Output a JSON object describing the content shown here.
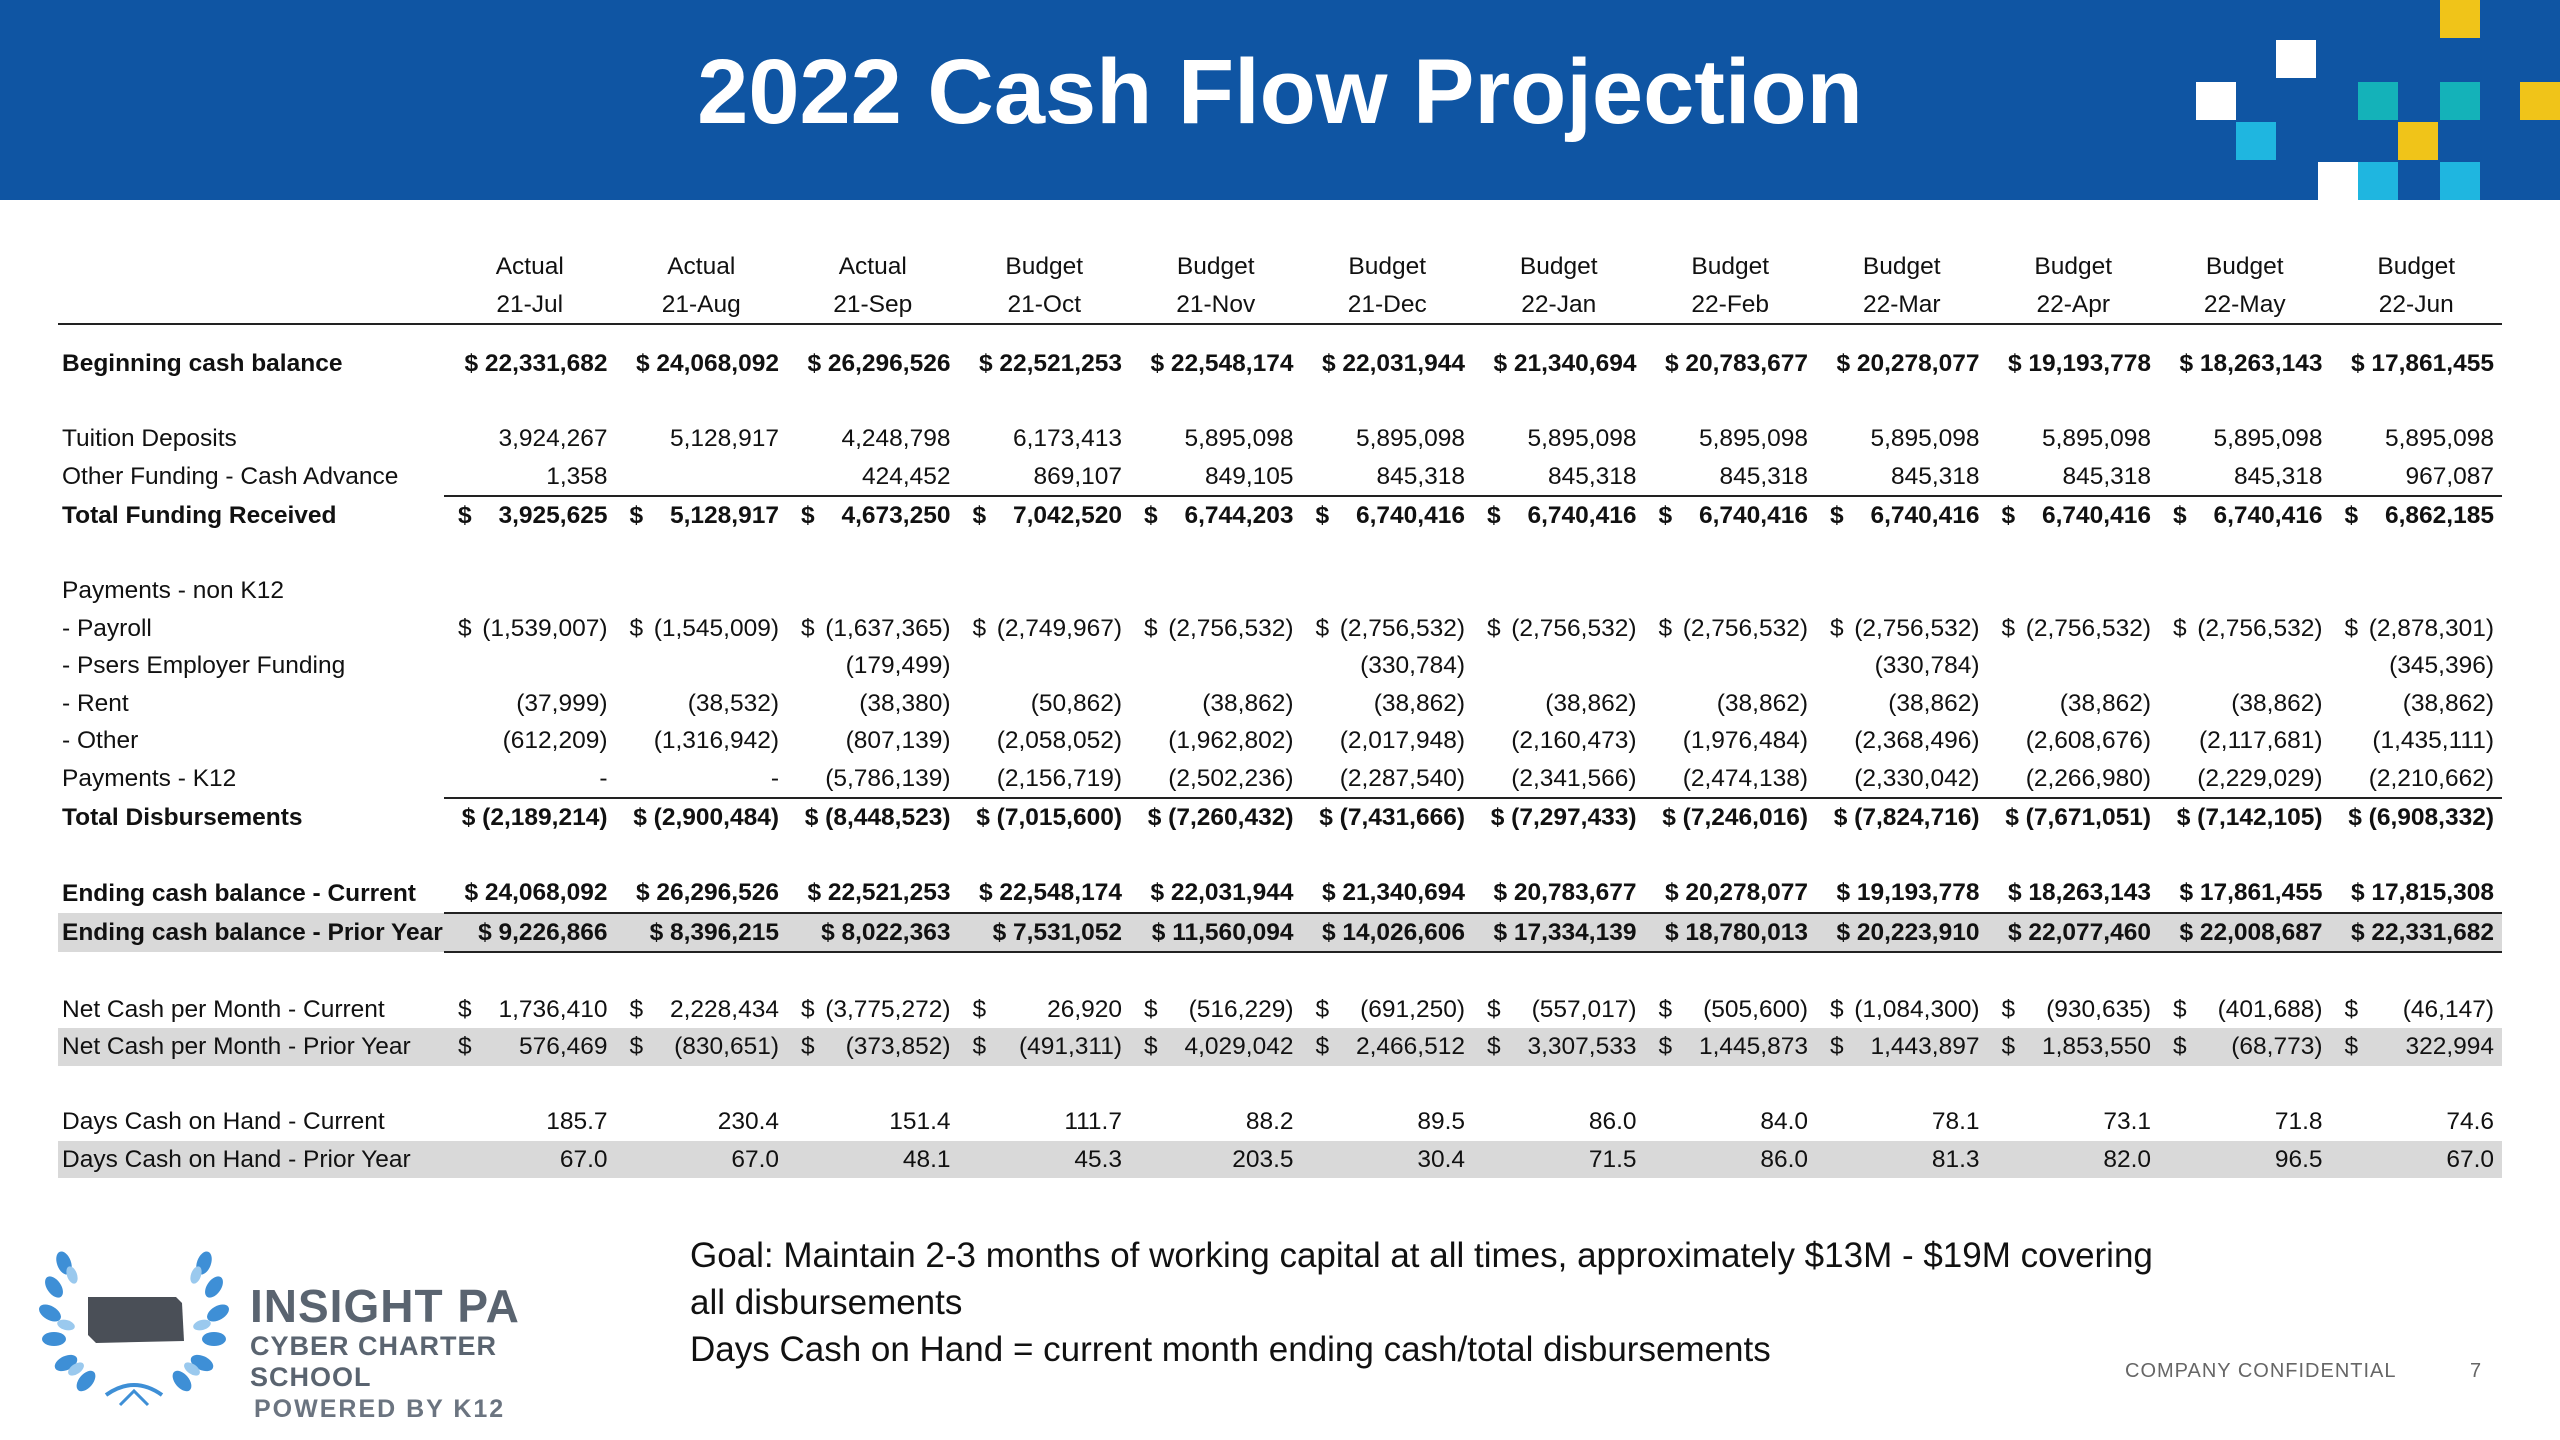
{
  "title": "2022 Cash Flow Projection",
  "columns": [
    {
      "type": "Actual",
      "month": "21-Jul"
    },
    {
      "type": "Actual",
      "month": "21-Aug"
    },
    {
      "type": "Actual",
      "month": "21-Sep"
    },
    {
      "type": "Budget",
      "month": "21-Oct"
    },
    {
      "type": "Budget",
      "month": "21-Nov"
    },
    {
      "type": "Budget",
      "month": "21-Dec"
    },
    {
      "type": "Budget",
      "month": "22-Jan"
    },
    {
      "type": "Budget",
      "month": "22-Feb"
    },
    {
      "type": "Budget",
      "month": "22-Mar"
    },
    {
      "type": "Budget",
      "month": "22-Apr"
    },
    {
      "type": "Budget",
      "month": "22-May"
    },
    {
      "type": "Budget",
      "month": "22-Jun"
    }
  ],
  "rows": [
    {
      "label": "Beginning cash balance",
      "style": "bold",
      "dollar": "attached",
      "values": [
        "$ 22,331,682",
        "$ 24,068,092",
        "$ 26,296,526",
        "$ 22,521,253",
        "$ 22,548,174",
        "$ 22,031,944",
        "$ 21,340,694",
        "$ 20,783,677",
        "$ 20,278,077",
        "$ 19,193,778",
        "$ 18,263,143",
        "$ 17,861,455"
      ]
    },
    {
      "spacer": true
    },
    {
      "label": "Tuition Deposits",
      "style": "normal",
      "values": [
        "3,924,267",
        "5,128,917",
        "4,248,798",
        "6,173,413",
        "5,895,098",
        "5,895,098",
        "5,895,098",
        "5,895,098",
        "5,895,098",
        "5,895,098",
        "5,895,098",
        "5,895,098"
      ]
    },
    {
      "label": "Other Funding - Cash Advance",
      "style": "normal",
      "values": [
        "1,358",
        "",
        "424,452",
        "869,107",
        "849,105",
        "845,318",
        "845,318",
        "845,318",
        "845,318",
        "845,318",
        "845,318",
        "967,087"
      ]
    },
    {
      "label": "Total Funding Received",
      "style": "bold",
      "topline": true,
      "dollar": "split",
      "values": [
        "3,925,625",
        "5,128,917",
        "4,673,250",
        "7,042,520",
        "6,744,203",
        "6,740,416",
        "6,740,416",
        "6,740,416",
        "6,740,416",
        "6,740,416",
        "6,740,416",
        "6,862,185"
      ]
    },
    {
      "spacer": true
    },
    {
      "label": "Payments - non K12",
      "style": "normal",
      "values": [
        "",
        "",
        "",
        "",
        "",
        "",
        "",
        "",
        "",
        "",
        "",
        ""
      ]
    },
    {
      "label": " - Payroll",
      "style": "normal",
      "dollar": "split",
      "values": [
        "(1,539,007)",
        "(1,545,009)",
        "(1,637,365)",
        "(2,749,967)",
        "(2,756,532)",
        "(2,756,532)",
        "(2,756,532)",
        "(2,756,532)",
        "(2,756,532)",
        "(2,756,532)",
        "(2,756,532)",
        "(2,878,301)"
      ]
    },
    {
      "label": " - Psers Employer Funding",
      "style": "normal",
      "values": [
        "",
        "",
        "(179,499)",
        "",
        "",
        "(330,784)",
        "",
        "",
        "(330,784)",
        "",
        "",
        "(345,396)"
      ]
    },
    {
      "label": " - Rent",
      "style": "normal",
      "values": [
        "(37,999)",
        "(38,532)",
        "(38,380)",
        "(50,862)",
        "(38,862)",
        "(38,862)",
        "(38,862)",
        "(38,862)",
        "(38,862)",
        "(38,862)",
        "(38,862)",
        "(38,862)"
      ]
    },
    {
      "label": " - Other",
      "style": "normal",
      "values": [
        "(612,209)",
        "(1,316,942)",
        "(807,139)",
        "(2,058,052)",
        "(1,962,802)",
        "(2,017,948)",
        "(2,160,473)",
        "(1,976,484)",
        "(2,368,496)",
        "(2,608,676)",
        "(2,117,681)",
        "(1,435,111)"
      ]
    },
    {
      "label": "Payments - K12",
      "style": "normal",
      "values": [
        "-",
        "-",
        "(5,786,139)",
        "(2,156,719)",
        "(2,502,236)",
        "(2,287,540)",
        "(2,341,566)",
        "(2,474,138)",
        "(2,330,042)",
        "(2,266,980)",
        "(2,229,029)",
        "(2,210,662)"
      ]
    },
    {
      "label": "Total Disbursements",
      "style": "bold",
      "topline": true,
      "dollar": "attached",
      "values": [
        "$ (2,189,214)",
        "$ (2,900,484)",
        "$ (8,448,523)",
        "$ (7,015,600)",
        "$ (7,260,432)",
        "$ (7,431,666)",
        "$ (7,297,433)",
        "$ (7,246,016)",
        "$ (7,824,716)",
        "$ (7,671,051)",
        "$ (7,142,105)",
        "$ (6,908,332)"
      ]
    },
    {
      "spacer": true
    },
    {
      "label": "Ending cash balance - Current",
      "style": "bold",
      "ebc": true,
      "dollar": "attached",
      "values": [
        "$ 24,068,092",
        "$ 26,296,526",
        "$ 22,521,253",
        "$ 22,548,174",
        "$ 22,031,944",
        "$ 21,340,694",
        "$ 20,783,677",
        "$ 20,278,077",
        "$ 19,193,778",
        "$ 18,263,143",
        "$ 17,861,455",
        "$ 17,815,308"
      ]
    },
    {
      "label": "Ending cash balance - Prior Year",
      "style": "bold",
      "shaded": true,
      "ebc": true,
      "dollar": "attached",
      "values": [
        "$  9,226,866",
        "$  8,396,215",
        "$  8,022,363",
        "$  7,531,052",
        "$ 11,560,094",
        "$ 14,026,606",
        "$ 17,334,139",
        "$ 18,780,013",
        "$ 20,223,910",
        "$ 22,077,460",
        "$ 22,008,687",
        "$ 22,331,682"
      ]
    },
    {
      "spacer": true
    },
    {
      "label": "Net Cash per Month - Current",
      "style": "normal",
      "dollar": "split",
      "values": [
        "1,736,410",
        "2,228,434",
        "(3,775,272)",
        "26,920",
        "(516,229)",
        "(691,250)",
        "(557,017)",
        "(505,600)",
        "(1,084,300)",
        "(930,635)",
        "(401,688)",
        "(46,147)"
      ]
    },
    {
      "label": "Net Cash per Month - Prior Year",
      "style": "normal",
      "shaded": true,
      "dollar": "split",
      "values": [
        "576,469",
        "(830,651)",
        "(373,852)",
        "(491,311)",
        "4,029,042",
        "2,466,512",
        "3,307,533",
        "1,445,873",
        "1,443,897",
        "1,853,550",
        "(68,773)",
        "322,994"
      ]
    },
    {
      "spacer": true
    },
    {
      "label": "Days Cash on Hand - Current",
      "style": "normal",
      "values": [
        "185.7",
        "230.4",
        "151.4",
        "111.7",
        "88.2",
        "89.5",
        "86.0",
        "84.0",
        "78.1",
        "73.1",
        "71.8",
        "74.6"
      ]
    },
    {
      "label": "Days Cash on Hand - Prior Year",
      "style": "normal",
      "shaded": true,
      "values": [
        "67.0",
        "67.0",
        "48.1",
        "45.3",
        "203.5",
        "30.4",
        "71.5",
        "86.0",
        "81.3",
        "82.0",
        "96.5",
        "67.0"
      ]
    }
  ],
  "currency_symbol": "$",
  "goal": {
    "line1": "Goal:  Maintain 2-3 months of working capital at all times, approximately $13M - $19M covering",
    "line2": "all disbursements",
    "line3": "Days Cash on Hand = current month ending cash/total disbursements"
  },
  "logo": {
    "name": "INSIGHT PA",
    "subtitle": "CYBER CHARTER SCHOOL",
    "powered_by": "POWERED BY K12"
  },
  "footer": {
    "confidential": "COMPANY CONFIDENTIAL",
    "page_number": "7"
  },
  "colors": {
    "header_bg": "#0f55a3",
    "accent_yellow": "#f0c419",
    "accent_teal": "#14b2b9",
    "accent_cyan": "#1fb6e0",
    "row_shade": "#d9d9d9"
  }
}
